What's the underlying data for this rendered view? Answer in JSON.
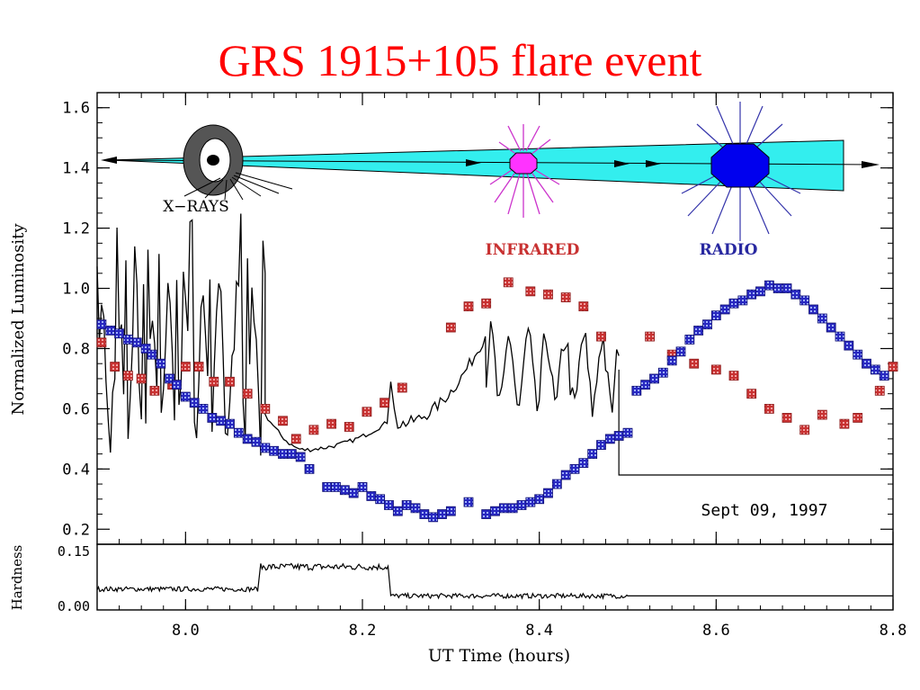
{
  "slide_title": "GRS 1915+105 flare event",
  "chart_data": {
    "type": "scatter",
    "xlabel": "UT Time (hours)",
    "ylabel": "Normalized Luminosity",
    "xlim": [
      7.9,
      8.8
    ],
    "ylim": [
      0.15,
      1.65
    ],
    "x_ticks": [
      8.0,
      8.2,
      8.4,
      8.6,
      8.8
    ],
    "x_tick_labels": [
      "8.0",
      "8.2",
      "8.4",
      "8.6",
      "8.8"
    ],
    "y_ticks": [
      0.2,
      0.4,
      0.6,
      0.8,
      1.0,
      1.2,
      1.4,
      1.6
    ],
    "y_tick_labels": [
      "0.2",
      "0.4",
      "0.6",
      "0.8",
      "1.0",
      "1.2",
      "1.4",
      "1.6"
    ],
    "date_annotation": "Sept 09, 1997",
    "annotations": {
      "xrays": "X−RAYS",
      "infrared": "INFRARED",
      "radio": "RADIO"
    },
    "colors": {
      "infrared": "#c83232",
      "radio": "#2828c0",
      "jet": "#33eeee",
      "blob_ir": "#ff33ff",
      "blob_radio": "#0000ee",
      "ir_arrows": "#cc33cc",
      "radio_arrows": "#3333aa"
    },
    "series": [
      {
        "name": "INFRARED",
        "points": [
          [
            7.905,
            0.82
          ],
          [
            7.92,
            0.74
          ],
          [
            7.935,
            0.71
          ],
          [
            7.95,
            0.7
          ],
          [
            7.965,
            0.66
          ],
          [
            7.985,
            0.68
          ],
          [
            8.0,
            0.74
          ],
          [
            8.015,
            0.74
          ],
          [
            8.032,
            0.69
          ],
          [
            8.05,
            0.69
          ],
          [
            8.07,
            0.65
          ],
          [
            8.09,
            0.6
          ],
          [
            8.11,
            0.56
          ],
          [
            8.125,
            0.5
          ],
          [
            8.145,
            0.53
          ],
          [
            8.165,
            0.55
          ],
          [
            8.185,
            0.54
          ],
          [
            8.205,
            0.59
          ],
          [
            8.225,
            0.62
          ],
          [
            8.245,
            0.67
          ],
          [
            8.3,
            0.87
          ],
          [
            8.32,
            0.94
          ],
          [
            8.34,
            0.95
          ],
          [
            8.365,
            1.02
          ],
          [
            8.39,
            0.99
          ],
          [
            8.41,
            0.98
          ],
          [
            8.43,
            0.97
          ],
          [
            8.45,
            0.94
          ],
          [
            8.47,
            0.84
          ],
          [
            8.525,
            0.84
          ],
          [
            8.55,
            0.78
          ],
          [
            8.575,
            0.75
          ],
          [
            8.6,
            0.73
          ],
          [
            8.62,
            0.71
          ],
          [
            8.64,
            0.65
          ],
          [
            8.66,
            0.6
          ],
          [
            8.68,
            0.57
          ],
          [
            8.7,
            0.53
          ],
          [
            8.72,
            0.58
          ],
          [
            8.745,
            0.55
          ],
          [
            8.76,
            0.57
          ],
          [
            8.785,
            0.66
          ],
          [
            8.8,
            0.74
          ]
        ]
      },
      {
        "name": "RADIO",
        "points": [
          [
            7.905,
            0.88
          ],
          [
            7.915,
            0.86
          ],
          [
            7.925,
            0.85
          ],
          [
            7.935,
            0.83
          ],
          [
            7.945,
            0.82
          ],
          [
            7.955,
            0.8
          ],
          [
            7.962,
            0.78
          ],
          [
            7.972,
            0.75
          ],
          [
            7.982,
            0.7
          ],
          [
            7.99,
            0.68
          ],
          [
            8.0,
            0.64
          ],
          [
            8.01,
            0.62
          ],
          [
            8.02,
            0.6
          ],
          [
            8.03,
            0.57
          ],
          [
            8.04,
            0.56
          ],
          [
            8.05,
            0.55
          ],
          [
            8.06,
            0.52
          ],
          [
            8.07,
            0.5
          ],
          [
            8.08,
            0.49
          ],
          [
            8.09,
            0.47
          ],
          [
            8.1,
            0.46
          ],
          [
            8.11,
            0.45
          ],
          [
            8.12,
            0.45
          ],
          [
            8.13,
            0.44
          ],
          [
            8.14,
            0.4
          ],
          [
            8.16,
            0.34
          ],
          [
            8.17,
            0.34
          ],
          [
            8.18,
            0.33
          ],
          [
            8.19,
            0.32
          ],
          [
            8.2,
            0.34
          ],
          [
            8.21,
            0.31
          ],
          [
            8.22,
            0.3
          ],
          [
            8.23,
            0.28
          ],
          [
            8.24,
            0.26
          ],
          [
            8.25,
            0.28
          ],
          [
            8.26,
            0.27
          ],
          [
            8.27,
            0.25
          ],
          [
            8.28,
            0.24
          ],
          [
            8.29,
            0.25
          ],
          [
            8.3,
            0.26
          ],
          [
            8.32,
            0.29
          ],
          [
            8.34,
            0.25
          ],
          [
            8.35,
            0.26
          ],
          [
            8.36,
            0.27
          ],
          [
            8.37,
            0.27
          ],
          [
            8.38,
            0.28
          ],
          [
            8.39,
            0.29
          ],
          [
            8.4,
            0.3
          ],
          [
            8.41,
            0.32
          ],
          [
            8.42,
            0.35
          ],
          [
            8.43,
            0.38
          ],
          [
            8.44,
            0.4
          ],
          [
            8.45,
            0.42
          ],
          [
            8.46,
            0.45
          ],
          [
            8.47,
            0.48
          ],
          [
            8.48,
            0.5
          ],
          [
            8.49,
            0.51
          ],
          [
            8.5,
            0.52
          ],
          [
            8.51,
            0.66
          ],
          [
            8.52,
            0.68
          ],
          [
            8.53,
            0.7
          ],
          [
            8.54,
            0.72
          ],
          [
            8.55,
            0.76
          ],
          [
            8.56,
            0.79
          ],
          [
            8.57,
            0.83
          ],
          [
            8.58,
            0.86
          ],
          [
            8.59,
            0.88
          ],
          [
            8.6,
            0.91
          ],
          [
            8.61,
            0.93
          ],
          [
            8.62,
            0.95
          ],
          [
            8.63,
            0.96
          ],
          [
            8.64,
            0.98
          ],
          [
            8.65,
            0.99
          ],
          [
            8.66,
            1.01
          ],
          [
            8.67,
            1.0
          ],
          [
            8.68,
            1.0
          ],
          [
            8.69,
            0.98
          ],
          [
            8.7,
            0.96
          ],
          [
            8.71,
            0.93
          ],
          [
            8.72,
            0.9
          ],
          [
            8.73,
            0.87
          ],
          [
            8.74,
            0.84
          ],
          [
            8.75,
            0.81
          ],
          [
            8.76,
            0.78
          ],
          [
            8.77,
            0.75
          ],
          [
            8.78,
            0.73
          ],
          [
            8.79,
            0.71
          ]
        ]
      }
    ],
    "hardness_panel": {
      "ylabel": "Hardness",
      "ylim": [
        0.0,
        0.15
      ],
      "y_tick_labels": [
        "0.15",
        "0.00"
      ],
      "segments": [
        {
          "x_range": [
            7.9,
            8.082
          ],
          "level": 0.04
        },
        {
          "x_range": [
            8.085,
            8.23
          ],
          "level": 0.105
        },
        {
          "x_range": [
            8.232,
            8.5
          ],
          "level": 0.02
        },
        {
          "x_range": [
            8.5,
            8.8
          ],
          "level": 0.02
        }
      ]
    }
  }
}
